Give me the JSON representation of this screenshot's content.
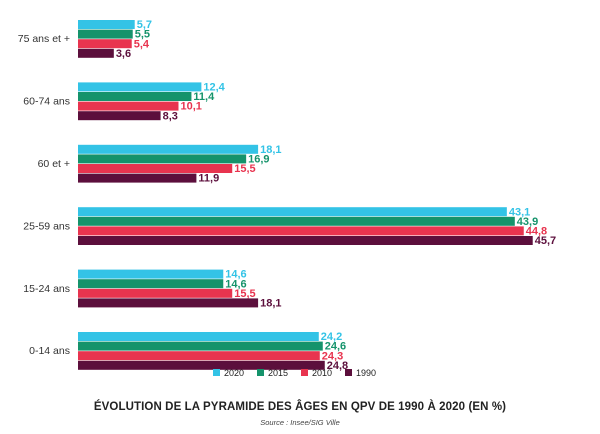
{
  "chart_data": {
    "type": "bar",
    "orientation": "horizontal",
    "title": "ÉVOLUTION DE LA PYRAMIDE DES ÂGES EN QPV DE 1990 À 2020 (EN %)",
    "source": "Source : Insee/SIG Ville",
    "categories": [
      "75 ans et +",
      "60-74 ans",
      "60 et +",
      "25-59 ans",
      "15-24 ans",
      "0-14 ans"
    ],
    "series": [
      {
        "name": "2020",
        "color": "#33c3e6",
        "values": [
          5.7,
          12.4,
          18.1,
          43.1,
          14.6,
          24.2
        ],
        "labels": [
          "5,7",
          "12,4",
          "18,1",
          "43,1",
          "14,6",
          "24,2"
        ]
      },
      {
        "name": "2015",
        "color": "#15936b",
        "values": [
          5.5,
          11.4,
          16.9,
          43.9,
          14.6,
          24.6
        ],
        "labels": [
          "5,5",
          "11,4",
          "16,9",
          "43,9",
          "14,6",
          "24,6"
        ]
      },
      {
        "name": "2010",
        "color": "#e8344f",
        "values": [
          5.4,
          10.1,
          15.5,
          44.8,
          15.5,
          24.3
        ],
        "labels": [
          "5,4",
          "10,1",
          "15,5",
          "44,8",
          "15,5",
          "24,3"
        ]
      },
      {
        "name": "1990",
        "color": "#5c0f3c",
        "values": [
          3.6,
          8.3,
          11.9,
          45.7,
          18.1,
          24.8
        ],
        "labels": [
          "3,6",
          "8,3",
          "11,9",
          "45,7",
          "18,1",
          "24,8"
        ]
      }
    ],
    "xlim": [
      0,
      45.7
    ],
    "grid": false,
    "axes_visible": false,
    "legend_position": "bottom"
  }
}
